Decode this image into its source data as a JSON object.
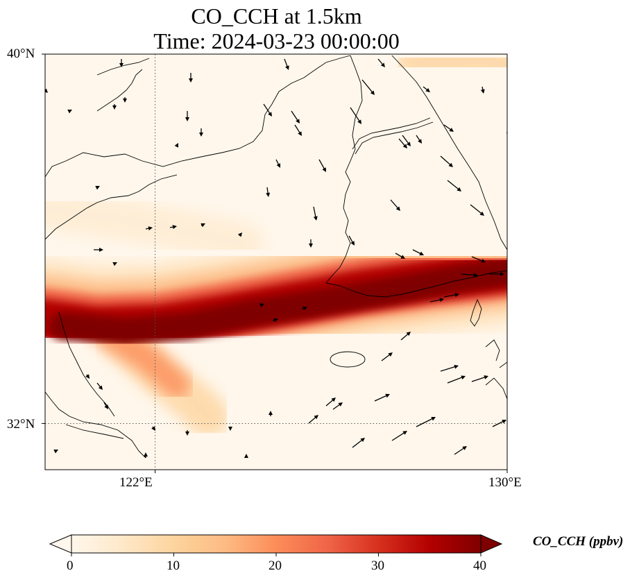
{
  "title": {
    "line1": "CO_CCH at 1.5km",
    "line2": "Time: 2024-03-23 00:00:00"
  },
  "map": {
    "lon_range": [
      119.5,
      130
    ],
    "lat_range": [
      31,
      40
    ],
    "lon_ticks": [
      {
        "value": 122,
        "label": "122°E"
      },
      {
        "value": 130,
        "label": "130°E"
      }
    ],
    "lat_ticks": [
      {
        "value": 40,
        "label": "40°N"
      },
      {
        "value": 32,
        "label": "32°N"
      }
    ],
    "gridlines": "dotted",
    "field": "CO_CCH",
    "plume_peak_ppbv": 40,
    "background_ppbv": 4
  },
  "colorbar": {
    "label": "CO_CCH (ppbv)",
    "ticks": [
      "0",
      "10",
      "20",
      "30",
      "40"
    ],
    "min": 0,
    "max": 40,
    "colormap": "OrRd",
    "colors": [
      "#fff7ec",
      "#fee8c8",
      "#fdd49e",
      "#fdbb84",
      "#fc8d59",
      "#ef6548",
      "#d7301f",
      "#b30000",
      "#7f0000"
    ]
  }
}
